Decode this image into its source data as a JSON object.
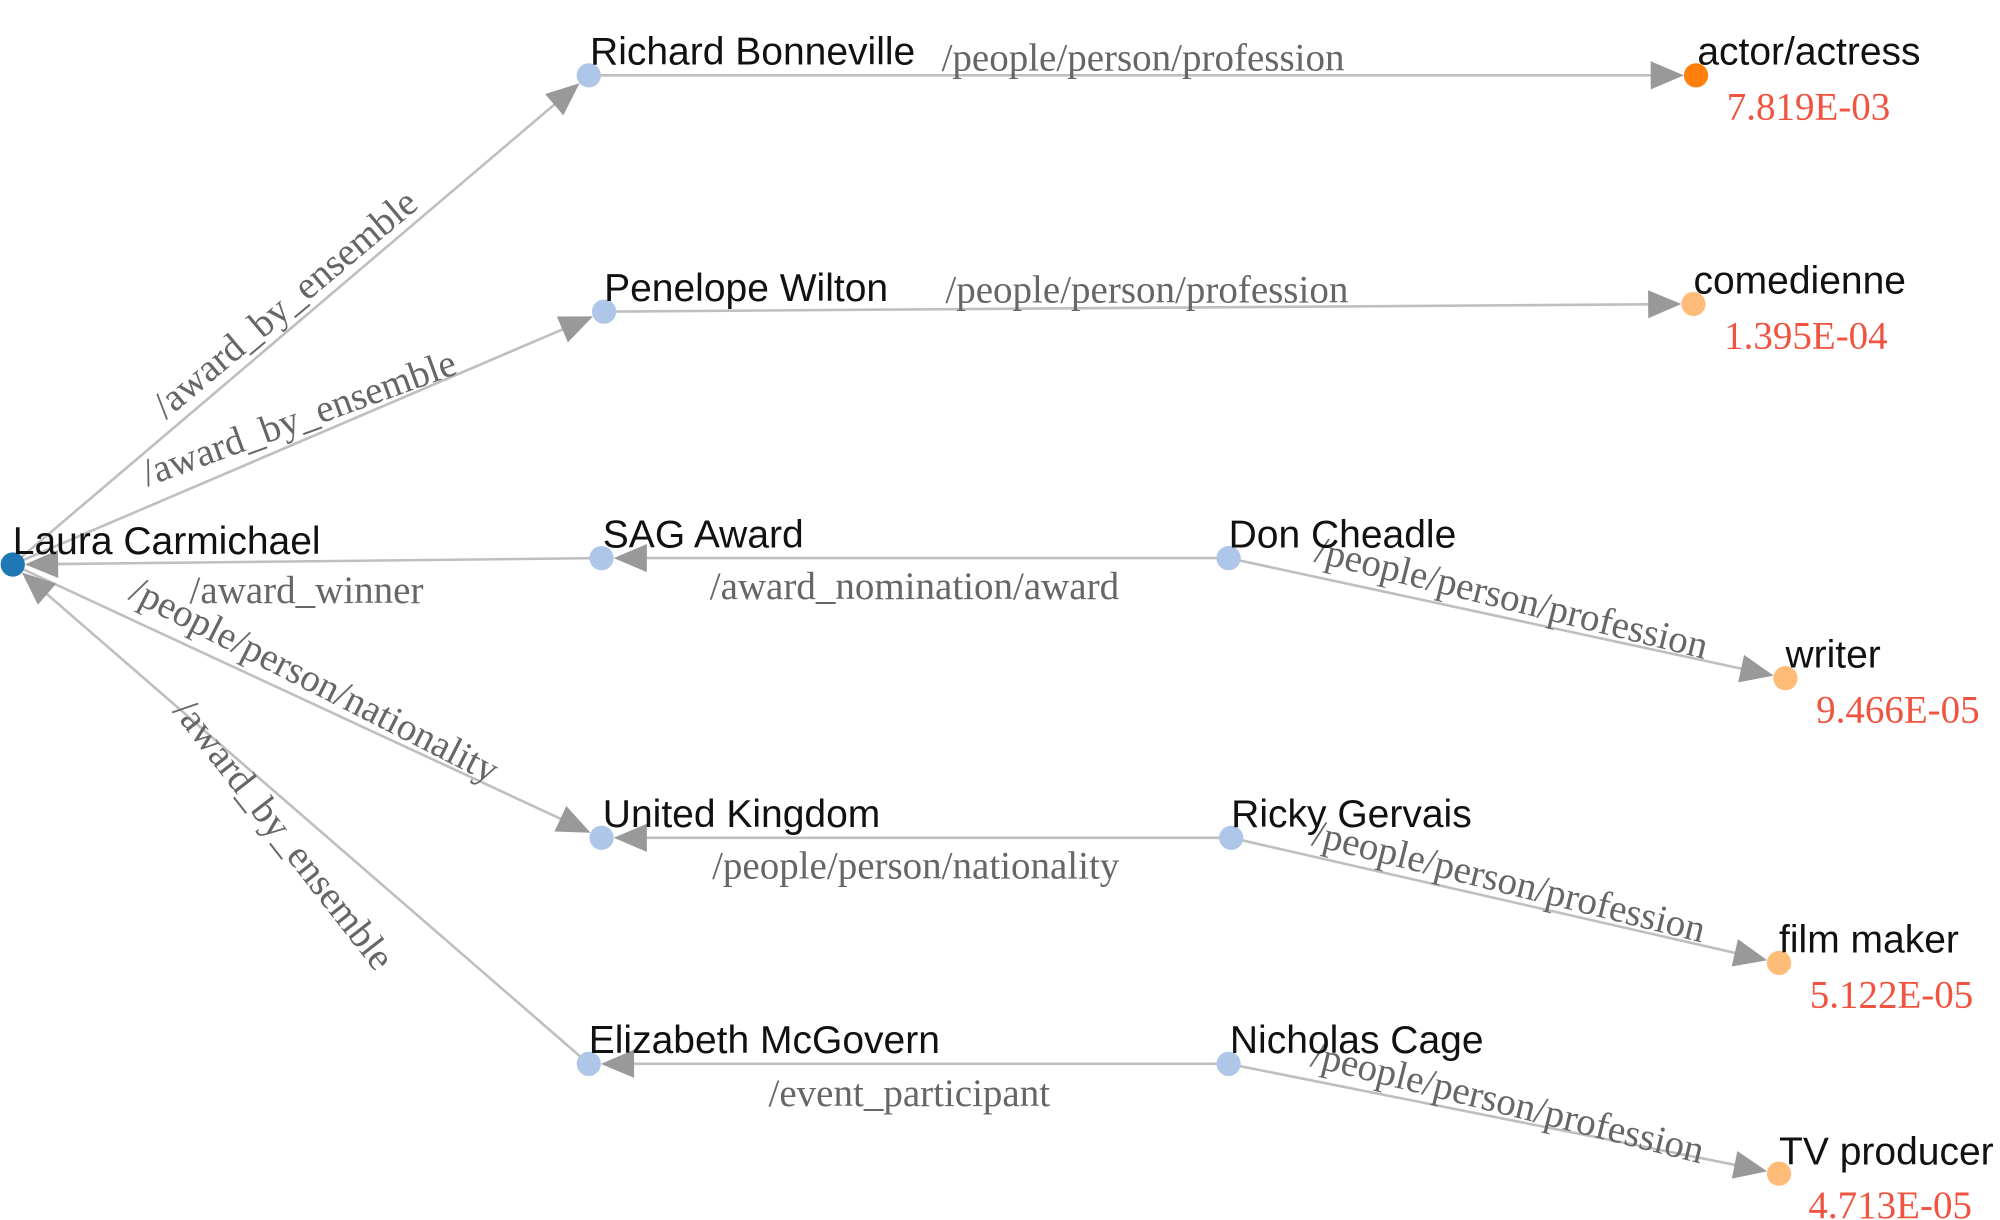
{
  "colors": {
    "source_node": "#1f77b4",
    "intermediate_node": "#aec7e8",
    "top_answer_node": "#ff7f0e",
    "answer_node": "#ffbb78",
    "score_text": "#f0533f",
    "edge": "#bfbfbf",
    "arrow": "#999999",
    "edge_label_text": "#666666",
    "node_label_text": "#111111"
  },
  "nodes": {
    "laura": {
      "label": "Laura Carmichael",
      "kind": "source_node"
    },
    "richard": {
      "label": "Richard Bonneville",
      "kind": "intermediate_node"
    },
    "penelope": {
      "label": "Penelope Wilton",
      "kind": "intermediate_node"
    },
    "sag": {
      "label": "SAG Award",
      "kind": "intermediate_node"
    },
    "uk": {
      "label": "United Kingdom",
      "kind": "intermediate_node"
    },
    "elizabeth": {
      "label": "Elizabeth McGovern",
      "kind": "intermediate_node"
    },
    "don": {
      "label": "Don Cheadle",
      "kind": "intermediate_node"
    },
    "ricky": {
      "label": "Ricky Gervais",
      "kind": "intermediate_node"
    },
    "nicholas": {
      "label": "Nicholas Cage",
      "kind": "intermediate_node"
    },
    "actor": {
      "label": "actor/actress",
      "kind": "top_answer_node",
      "score": "7.819E-03"
    },
    "comedienne": {
      "label": "comedienne",
      "kind": "answer_node",
      "score": "1.395E-04"
    },
    "writer": {
      "label": "writer",
      "kind": "answer_node",
      "score": "9.466E-05"
    },
    "filmmaker": {
      "label": "film maker",
      "kind": "answer_node",
      "score": "5.122E-05"
    },
    "tvproducer": {
      "label": "TV producer",
      "kind": "answer_node",
      "score": "4.713E-05"
    }
  },
  "edges": [
    {
      "from": "laura",
      "to": "richard",
      "label": "/award_by_ensemble"
    },
    {
      "from": "laura",
      "to": "penelope",
      "label": "/award_by_ensemble"
    },
    {
      "from": "sag",
      "to": "laura",
      "label": "/award_winner"
    },
    {
      "from": "laura",
      "to": "uk",
      "label": "/people/person/nationality"
    },
    {
      "from": "elizabeth",
      "to": "laura",
      "label": "/award_by_ensemble"
    },
    {
      "from": "richard",
      "to": "actor",
      "label": "/people/person/profession"
    },
    {
      "from": "penelope",
      "to": "comedienne",
      "label": "/people/person/profession"
    },
    {
      "from": "don",
      "to": "sag",
      "label": "/award_nomination/award"
    },
    {
      "from": "don",
      "to": "writer",
      "label": "/people/person/profession"
    },
    {
      "from": "ricky",
      "to": "uk",
      "label": "/people/person/nationality"
    },
    {
      "from": "ricky",
      "to": "filmmaker",
      "label": "/people/person/profession"
    },
    {
      "from": "nicholas",
      "to": "elizabeth",
      "label": "/event_participant"
    },
    {
      "from": "nicholas",
      "to": "tvproducer",
      "label": "/people/person/profession"
    }
  ]
}
